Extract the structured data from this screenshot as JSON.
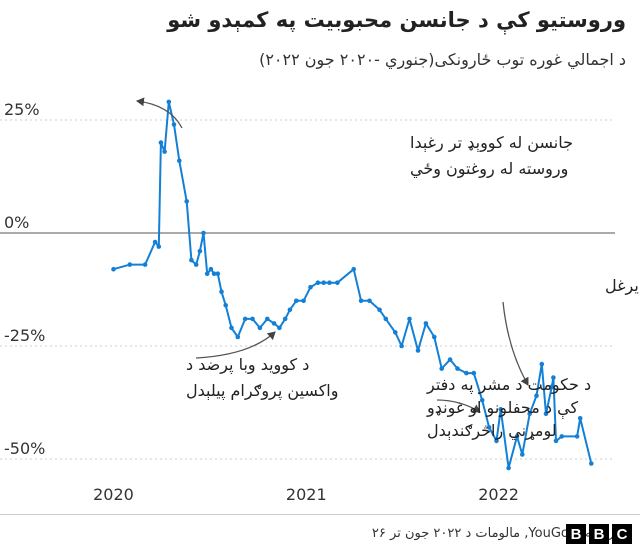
{
  "title": "وروستيو کې د جانسن محبوبيت په کمېدو شو",
  "subtitle": "د اجمالي غوره توب ځارونکی(جنوري -۲۰۲۰ جون ۲۰۲۲)",
  "source": "سرچینه: YouGov, مالومات د ۲۰۲۲ جون تر ۲۶",
  "logo": {
    "letters": [
      "B",
      "B",
      "C"
    ]
  },
  "colors": {
    "line": "#1380d6",
    "grid": "#cccccc",
    "zero": "#777777",
    "arrow": "#555555"
  },
  "chart_data": {
    "type": "line",
    "title": "وروستيو کې د جانسن محبوبيت په کمېدو شو",
    "subtitle": "د اجمالي غوره توب ځارونکی(جنوري -۲۰۲۰ جون ۲۰۲۲)",
    "xlabel": "",
    "ylabel": "",
    "x_ticks": [
      "2020",
      "2021",
      "2022"
    ],
    "y_ticks": [
      "25%",
      "0%",
      "-25%",
      "-50%"
    ],
    "ylim": [
      -52,
      29
    ],
    "grid": true,
    "x": [
      "2020-01-01",
      "2020-02-01",
      "2020-03-01",
      "2020-03-20",
      "2020-03-27",
      "2020-03-31",
      "2020-04-07",
      "2020-04-15",
      "2020-04-25",
      "2020-05-05",
      "2020-05-19",
      "2020-05-28",
      "2020-06-06",
      "2020-06-13",
      "2020-06-20",
      "2020-06-27",
      "2020-07-04",
      "2020-07-10",
      "2020-07-17",
      "2020-07-24",
      "2020-08-01",
      "2020-08-12",
      "2020-08-24",
      "2020-09-07",
      "2020-09-21",
      "2020-10-05",
      "2020-10-19",
      "2020-11-01",
      "2020-11-11",
      "2020-11-22",
      "2020-12-01",
      "2020-12-13",
      "2020-12-27",
      "2021-01-09",
      "2021-01-23",
      "2021-02-03",
      "2021-02-14",
      "2021-03-01",
      "2021-04-01",
      "2021-04-15",
      "2021-05-01",
      "2021-05-20",
      "2021-06-01",
      "2021-06-19",
      "2021-07-01",
      "2021-07-16",
      "2021-08-01",
      "2021-08-16",
      "2021-09-01",
      "2021-09-15",
      "2021-10-01",
      "2021-10-15",
      "2021-11-01",
      "2021-11-15",
      "2021-12-01",
      "2021-12-14",
      "2021-12-28",
      "2022-01-05",
      "2022-01-20",
      "2022-02-05",
      "2022-02-15",
      "2022-03-01",
      "2022-03-14",
      "2022-03-24",
      "2022-04-01",
      "2022-04-12",
      "2022-04-15",
      "2022-04-20",
      "2022-05-01",
      "2022-05-30",
      "2022-06-05",
      "2022-06-26"
    ],
    "series": [
      {
        "values": [
          -8,
          -7,
          -7,
          -2,
          -3,
          20,
          18,
          29,
          24,
          16,
          7,
          -6,
          -7,
          -4,
          0,
          -9,
          -8,
          -9,
          -9,
          -13,
          -16,
          -21,
          -23,
          -19,
          -19,
          -21,
          -19,
          -20,
          -21,
          -19,
          -17,
          -15,
          -15,
          -12,
          -11,
          -11,
          -11,
          -11,
          -8,
          -15,
          -15,
          -17,
          -19,
          -22,
          -25,
          -19,
          -26,
          -20,
          -23,
          -30,
          -28,
          -30,
          -31,
          -31,
          -37,
          -43,
          -46,
          -39,
          -52,
          -45,
          -49,
          -40,
          -36,
          -29,
          -40,
          -34,
          -32,
          -46,
          -45,
          -45,
          -41,
          -51
        ]
      }
    ],
    "annotations": [
      {
        "lines": [
          "جانسن له کووېډ تر رغېدا",
          "وروسته له روغتون وځي"
        ]
      },
      {
        "lines": [
          "پر روسیه د اوکراایین یرغل"
        ]
      },
      {
        "lines": [
          "د کووید وبا پرضد د",
          "واکسین پروګرام پیلېدل"
        ]
      },
      {
        "lines": [
          "د حکومت د مشر په دفتر",
          "کې د محفلونو او غونډو",
          "لومړني راڅرګندېدل"
        ]
      }
    ]
  }
}
